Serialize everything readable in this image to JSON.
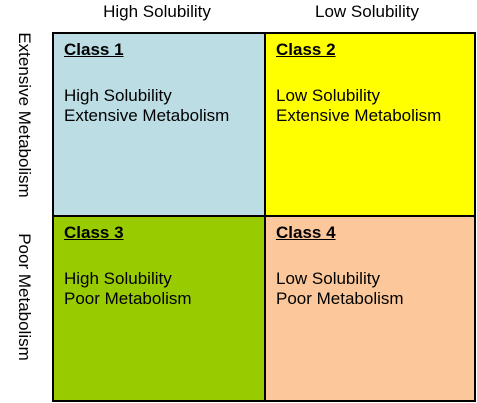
{
  "columns": {
    "left": "High Solubility",
    "right": "Low Solubility"
  },
  "rows": {
    "top": "Extensive Metabolism",
    "bottom": "Poor Metabolism"
  },
  "cells": [
    {
      "title": "Class 1",
      "line1": "High Solubility",
      "line2": "Extensive Metabolism",
      "color": "#bcdde3"
    },
    {
      "title": "Class 2",
      "line1": "Low Solubility",
      "line2": "Extensive Metabolism",
      "color": "#ffff00"
    },
    {
      "title": "Class 3",
      "line1": "High Solubility",
      "line2": "Poor Metabolism",
      "color": "#99cc00"
    },
    {
      "title": "Class 4",
      "line1": "Low Solubility",
      "line2": "Poor Metabolism",
      "color": "#fcc89b"
    }
  ]
}
